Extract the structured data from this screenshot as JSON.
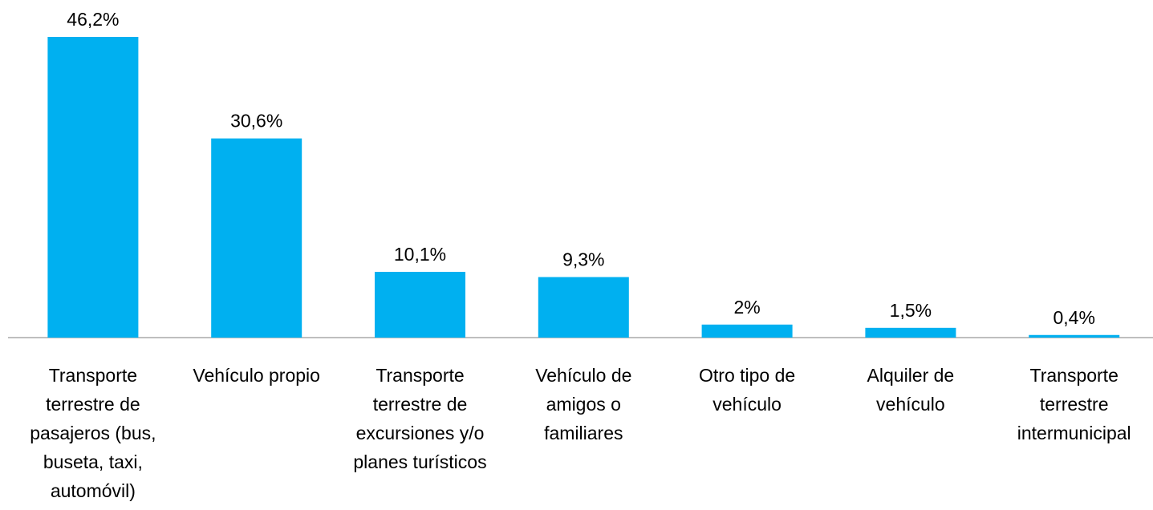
{
  "chart_data": {
    "type": "bar",
    "categories": [
      "Transporte terrestre de pasajeros (bus, buseta, taxi, automóvil)",
      "Vehículo propio",
      "Transporte terrestre de excursiones y/o planes turísticos",
      "Vehículo de amigos o familiares",
      "Otro tipo de vehículo",
      "Alquiler de vehículo",
      "Transporte terrestre intermunicipal"
    ],
    "values": [
      46.2,
      30.6,
      10.1,
      9.3,
      2,
      1.5,
      0.4
    ],
    "value_labels": [
      "46,2%",
      "30,6%",
      "10,1%",
      "9,3%",
      "2%",
      "1,5%",
      "0,4%"
    ],
    "color": "#00b0f0"
  }
}
